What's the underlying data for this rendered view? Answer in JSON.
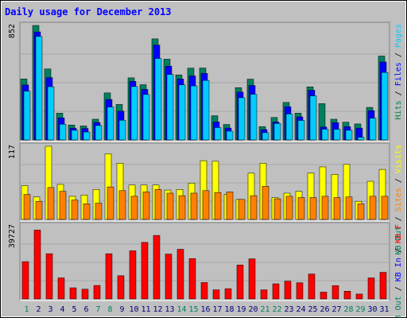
{
  "chart_data": {
    "title": "Daily usage for December 2013",
    "type": "bar",
    "days": [
      "1",
      "2",
      "3",
      "4",
      "5",
      "6",
      "7",
      "8",
      "9",
      "10",
      "11",
      "12",
      "13",
      "14",
      "15",
      "16",
      "17",
      "18",
      "19",
      "20",
      "21",
      "22",
      "23",
      "24",
      "25",
      "26",
      "27",
      "28",
      "29",
      "30",
      "31"
    ],
    "weekend_days": [
      "1",
      "7",
      "8",
      "14",
      "15",
      "21",
      "22",
      "28",
      "29"
    ],
    "panels": [
      {
        "name": "top",
        "max_label": "852",
        "ymax": 852,
        "legend": [
          {
            "text": "Pages",
            "color": "#00ccff"
          },
          {
            "text": "Files",
            "color": "#0000ff"
          },
          {
            "text": "Hits",
            "color": "#008040"
          }
        ],
        "separator": " / ",
        "series": [
          {
            "key": "hits",
            "color": "#008060",
            "values": [
              454,
              852,
              528,
              199,
              111,
              104,
              154,
              350,
              264,
              462,
              411,
              752,
              601,
              484,
              534,
              535,
              180,
              115,
              389,
              452,
              99,
              167,
              279,
              199,
              395,
              270,
              154,
              132,
              119,
              242,
              624
            ]
          },
          {
            "key": "files",
            "color": "#0000ff",
            "values": [
              409,
              804,
              464,
              164,
              88,
              85,
              130,
              301,
              214,
              436,
              376,
              706,
              549,
              453,
              476,
              495,
              134,
              88,
              356,
              405,
              77,
              133,
              247,
              172,
              370,
              96,
              129,
              98,
              88,
              218,
              580
            ]
          },
          {
            "key": "pages",
            "color": "#00ccff",
            "values": [
              363,
              770,
              396,
              117,
              72,
              59,
              107,
              245,
              146,
              397,
              338,
              606,
              487,
              410,
              402,
              443,
              92,
              65,
              314,
              340,
              54,
              122,
              193,
              145,
              328,
              80,
              79,
              72,
              20,
              162,
              502
            ]
          }
        ]
      },
      {
        "name": "middle",
        "max_label": "117",
        "ymax": 117,
        "legend": [
          {
            "text": "Visits",
            "color": "#ffff00"
          },
          {
            "text": "Sites",
            "color": "#ff8000"
          },
          {
            "text": "KB Out",
            "color": "#008060"
          }
        ],
        "separator": " / ",
        "series": [
          {
            "key": "visits",
            "color": "#ffff00",
            "values": [
              54,
              36,
              117,
              56,
              37,
              39,
              48,
              105,
              90,
              55,
              55,
              55,
              47,
              48,
              58,
              94,
              93,
              40,
              32,
              74,
              90,
              35,
              42,
              45,
              74,
              84,
              72,
              88,
              29,
              61,
              80
            ]
          },
          {
            "key": "sites",
            "color": "#ff8000",
            "values": [
              40,
              29,
              51,
              45,
              31,
              25,
              26,
              52,
              46,
              37,
              44,
              48,
              42,
              38,
              42,
              46,
              43,
              44,
              32,
              38,
              53,
              33,
              37,
              35,
              35,
              37,
              35,
              36,
              25,
              37,
              37
            ]
          }
        ]
      },
      {
        "name": "bottom",
        "max_label": "39727",
        "ymax": 39727,
        "legend": [
          {
            "text": "KB F",
            "color": "#ff0000"
          },
          {
            "text": "KB In",
            "color": "#0000ff"
          },
          {
            "text": "KB Out",
            "color": "#008060"
          }
        ],
        "separator": " / ",
        "series": [
          {
            "key": "kbf",
            "color": "#ff0000",
            "values": [
              20270,
              37390,
              24560,
              11420,
              6040,
              5280,
              7320,
              24560,
              12600,
              26140,
              30710,
              34500,
              24360,
              26970,
              21910,
              8920,
              4930,
              5570,
              18440,
              21770,
              4930,
              8200,
              9650,
              8800,
              13530,
              3680,
              7210,
              4210,
              2640,
              11420,
              14460
            ]
          }
        ]
      }
    ]
  }
}
